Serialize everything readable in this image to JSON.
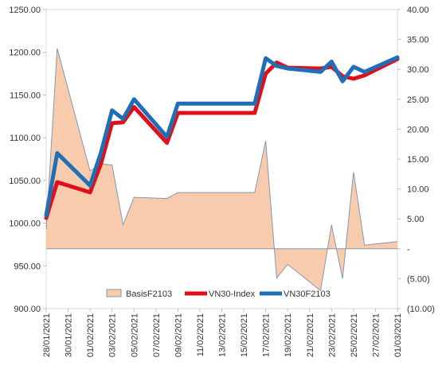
{
  "chart_data": {
    "type": "line",
    "title": "",
    "xlabel": "",
    "ylabel": "",
    "ylim_left": [
      900,
      1250
    ],
    "ylim_right": [
      -10,
      40
    ],
    "y_ticks_left": [
      "1250.00",
      "1200.00",
      "1150.00",
      "1100.00",
      "1050.00",
      "1000.00",
      "950.00",
      "900.00"
    ],
    "y_ticks_right": [
      "40.00",
      "35.00",
      "30.00",
      "25.00",
      "20.00",
      "15.00",
      "10.00",
      "5.00",
      "-",
      "(5.00)",
      "(10.00)"
    ],
    "x_ticks": [
      "28/01/2021",
      "30/01/2021",
      "01/02/2021",
      "03/02/2021",
      "05/02/2021",
      "07/02/2021",
      "09/02/2021",
      "11/02/2021",
      "13/02/2021",
      "15/02/2021",
      "17/02/2021",
      "19/02/2021",
      "21/02/2021",
      "23/02/2021",
      "25/02/2021",
      "27/02/2021",
      "01/03/2021"
    ],
    "legend_position": "bottom-center",
    "grid": false,
    "series": [
      {
        "name": "BasisF2103",
        "type": "area",
        "axis": "right",
        "color": "#f8cbad",
        "edge_color": "#8497b0",
        "x": [
          "2021-01-28",
          "2021-01-29",
          "2021-02-01",
          "2021-02-02",
          "2021-02-03",
          "2021-02-04",
          "2021-02-05",
          "2021-02-08",
          "2021-02-09",
          "2021-02-16",
          "2021-02-17",
          "2021-02-18",
          "2021-02-19",
          "2021-02-22",
          "2021-02-23",
          "2021-02-24",
          "2021-02-25",
          "2021-02-26",
          "2021-03-01"
        ],
        "values": [
          3.3,
          33.5,
          13.0,
          14.2,
          14.0,
          4.0,
          8.6,
          8.4,
          9.4,
          9.4,
          18.0,
          -4.9,
          -2.6,
          -7.0,
          4.0,
          -5.0,
          12.8,
          0.6,
          1.2
        ]
      },
      {
        "name": "VN30-Index",
        "type": "line",
        "axis": "left",
        "color": "#e0101a",
        "x": [
          "2021-01-28",
          "2021-01-29",
          "2021-02-01",
          "2021-02-02",
          "2021-02-03",
          "2021-02-04",
          "2021-02-05",
          "2021-02-08",
          "2021-02-09",
          "2021-02-16",
          "2021-02-17",
          "2021-02-18",
          "2021-02-19",
          "2021-02-22",
          "2021-02-23",
          "2021-02-24",
          "2021-02-25",
          "2021-02-26",
          "2021-03-01"
        ],
        "values": [
          1006,
          1048,
          1036,
          1070,
          1117,
          1118,
          1136,
          1094,
          1129,
          1129,
          1175,
          1188,
          1182,
          1181,
          1183,
          1172,
          1169,
          1173,
          1192
        ]
      },
      {
        "name": "VN30F2103",
        "type": "line",
        "axis": "left",
        "color": "#1f6fb8",
        "x": [
          "2021-01-28",
          "2021-01-29",
          "2021-02-01",
          "2021-02-02",
          "2021-02-03",
          "2021-02-04",
          "2021-02-05",
          "2021-02-08",
          "2021-02-09",
          "2021-02-16",
          "2021-02-17",
          "2021-02-18",
          "2021-02-19",
          "2021-02-22",
          "2021-02-23",
          "2021-02-24",
          "2021-02-25",
          "2021-02-26",
          "2021-03-01"
        ],
        "values": [
          1009,
          1082,
          1044,
          1083,
          1132,
          1122,
          1145,
          1101,
          1140,
          1140,
          1193,
          1184,
          1181,
          1177,
          1189,
          1166,
          1183,
          1177,
          1194
        ]
      }
    ]
  }
}
